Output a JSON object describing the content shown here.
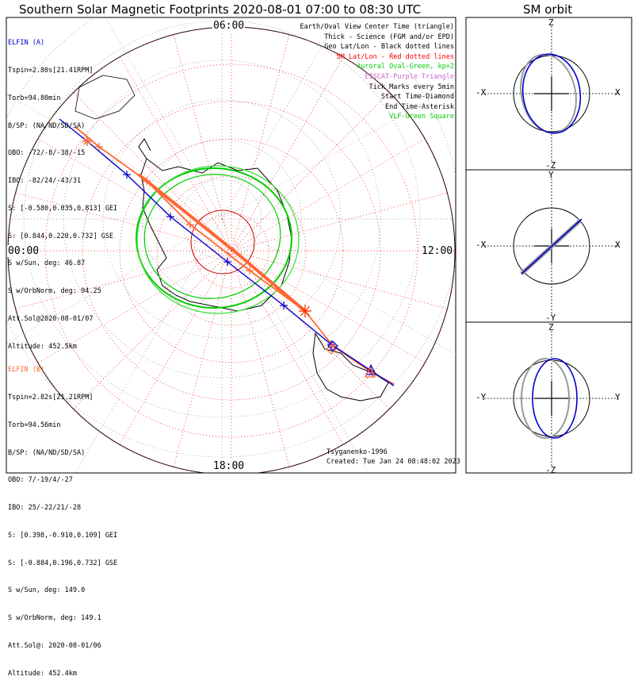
{
  "title": "Southern Solar Magnetic Footprints 2020-08-01 07:00 to 08:30 UTC",
  "orbit_title": "SM orbit",
  "hour_labels": {
    "top": "06:00",
    "left": "00:00",
    "right": "12:00",
    "bottom": "18:00"
  },
  "legend": [
    {
      "text": "Earth/Oval View Center Time (triangle)",
      "color": "#000000"
    },
    {
      "text": "Thick - Science (FGM and/or EPD)",
      "color": "#000000"
    },
    {
      "text": "Geo Lat/Lon - Black dotted lines",
      "color": "#000000"
    },
    {
      "text": "SM Lat/Lon - Red dotted lines",
      "color": "#ff0000"
    },
    {
      "text": "Auroral Oval-Green, kp=2",
      "color": "#00cc00"
    },
    {
      "text": "EISCAT-Purple Triangle",
      "color": "#cc66cc"
    },
    {
      "text": "Tick Marks every 5min",
      "color": "#000000"
    },
    {
      "text": "Start Time-Diamond",
      "color": "#000000"
    },
    {
      "text": "End Time-Asterisk",
      "color": "#000000"
    },
    {
      "text": "VLF-Green Square",
      "color": "#00cc00"
    }
  ],
  "elfin_a": {
    "name": "ELFIN (A)",
    "color": "#0000cc",
    "lines": [
      "Tspin=2.80s[21.41RPM]",
      "Torb=94.80min",
      "B/SP: (NA/ND/SD/SA)",
      "OBO: -72/-8/-38/-15",
      "IBO: -82/24/-43/31",
      "S: [-0.580,0.035,0.813] GEI",
      "S: [0.844,0.220,0.732] GSE",
      "S w/Sun, deg: 46.87",
      "S w/OrbNorm, deg: 94.25",
      "Att.Sol@2020-08-01/07",
      "Altitude: 452.5km"
    ]
  },
  "elfin_b": {
    "name": "ELFIN (B)",
    "color": "#ff6633",
    "lines": [
      "Tspin=2.82s[21.21RPM]",
      "Torb=94.56min",
      "B/SP: (NA/ND/SD/SA)",
      "OBO: 7/-19/4/-27",
      "IBO: 25/-22/21/-28",
      "S: [0.398,-0.910,0.109] GEI",
      "S: [-0.884,0.196,0.732] GSE",
      "S w/Sun, deg: 149.0",
      "S w/OrbNorm, deg: 149.1",
      "Att.Sol@: 2020-08-01/06",
      "Altitude: 452.4km"
    ]
  },
  "credit": "Tsyganenko-1996",
  "created": "Created: Tue Jan 24 08:48:02 2023",
  "orbit_panels": [
    {
      "up": "Z",
      "down": "-Z",
      "left": "-X",
      "right": "X"
    },
    {
      "up": "Y",
      "down": "-Y",
      "left": "-X",
      "right": "X"
    },
    {
      "up": "Z",
      "down": "-Z",
      "left": "-Y",
      "right": "Y"
    }
  ],
  "chart_data": {
    "type": "polar-map",
    "projection": "southern hemisphere, SM coordinates, MLT on azimuth",
    "mlt_labels": [
      "06:00",
      "00:00",
      "12:00",
      "18:00"
    ],
    "tick_interval_min": 5,
    "kp": 2,
    "series": [
      {
        "name": "ELFIN (A)",
        "color": "#0000cc",
        "start": "diamond",
        "end": "asterisk"
      },
      {
        "name": "ELFIN (B)",
        "color": "#ff6633",
        "start": "diamond",
        "end": "asterisk"
      }
    ]
  }
}
